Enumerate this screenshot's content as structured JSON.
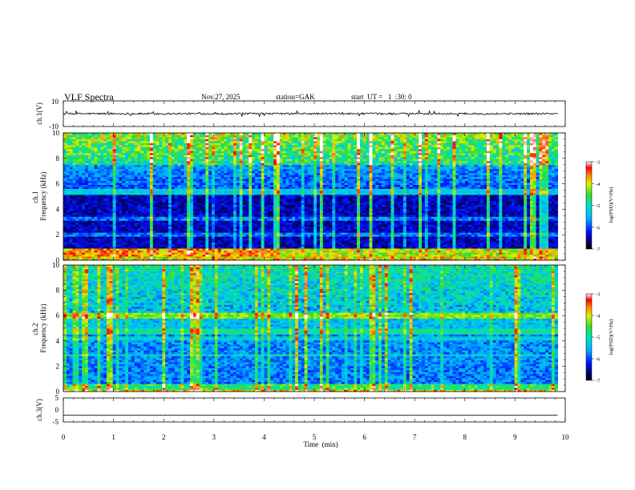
{
  "header": {
    "title": "VLF Spectra",
    "date": "Nov.27, 2025",
    "station": "station=GAK",
    "start": "start  UT =   1  :30: 0"
  },
  "chart_data": [
    {
      "type": "line",
      "ylabel": "ch.1(V)",
      "ylim": [
        -10,
        10
      ],
      "yticks": [
        "10",
        "-10"
      ],
      "xlim": [
        0,
        10
      ],
      "baseline": 0,
      "noise_amplitude": 1.2
    },
    {
      "type": "heatmap",
      "ylabel": "ch.1\nFrequency (kHz)",
      "ylim": [
        0,
        10
      ],
      "yticks": [
        "0",
        "2",
        "4",
        "6",
        "8",
        "10"
      ],
      "xlim": [
        0,
        10
      ],
      "data_extent_min": 9.85,
      "colorbar": {
        "label": "log(PSD)(V²/Hz)",
        "range": [
          -7,
          -3
        ],
        "ticks": [
          "-3",
          "-4",
          "-5",
          "-6",
          "-7"
        ]
      },
      "bands_khz": [
        [
          0.3,
          1.0
        ],
        [
          5.2,
          5.5
        ],
        [
          7.5,
          10
        ]
      ]
    },
    {
      "type": "heatmap",
      "ylabel": "ch.2\nFrequency (kHz)",
      "ylim": [
        0,
        10
      ],
      "yticks": [
        "0",
        "2",
        "4",
        "6",
        "8",
        "10"
      ],
      "xlim": [
        0,
        10
      ],
      "data_extent_min": 9.85,
      "colorbar": {
        "label": "log(PSD)(V²/Hz)",
        "range": [
          -7,
          -3
        ],
        "ticks": [
          "-3",
          "-4",
          "-5",
          "-6",
          "-7"
        ]
      },
      "bands_khz": [
        [
          0.0,
          0.6
        ],
        [
          4.6,
          5.0
        ],
        [
          5.8,
          6.3
        ]
      ]
    },
    {
      "type": "line",
      "ylabel": "ch.3(V)",
      "ylim": [
        -5,
        5
      ],
      "yticks": [
        "5",
        "0",
        "-5"
      ],
      "xlim": [
        0,
        10
      ],
      "xlabel": "Time  (min)",
      "xticks": [
        "0",
        "1",
        "2",
        "3",
        "4",
        "5",
        "6",
        "7",
        "8",
        "9",
        "10"
      ],
      "baseline": -2.2,
      "noise_amplitude": 0.15
    }
  ],
  "colors": {
    "bg": "#ffffff",
    "axis": "#000000"
  }
}
